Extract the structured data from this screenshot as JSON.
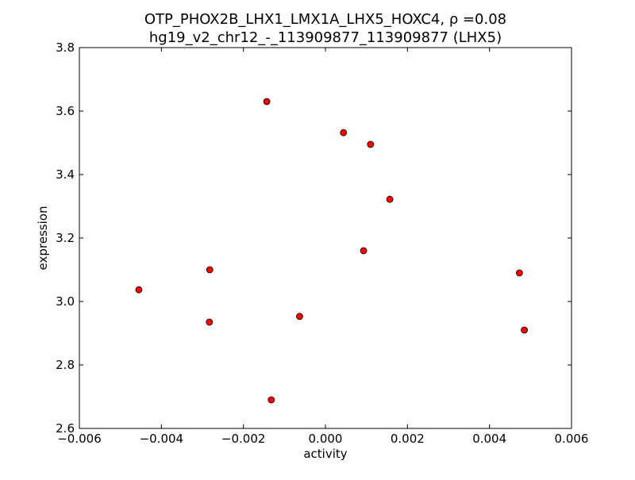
{
  "chart_data": {
    "type": "scatter",
    "title_line1": "OTP_PHOX2B_LHX1_LMX1A_LHX5_HOXC4, ρ =0.08",
    "title_line2": "hg19_v2_chr12_-_113909877_113909877 (LHX5)",
    "xlabel": "activity",
    "ylabel": "expression",
    "xlim": [
      -0.006,
      0.006
    ],
    "ylim": [
      2.6,
      3.8
    ],
    "xticks": [
      -0.006,
      -0.004,
      -0.002,
      0.0,
      0.002,
      0.004,
      0.006
    ],
    "xtick_labels": [
      "−0.006",
      "−0.004",
      "−0.002",
      "0.000",
      "0.002",
      "0.004",
      "0.006"
    ],
    "yticks": [
      2.6,
      2.8,
      3.0,
      3.2,
      3.4,
      3.6,
      3.8
    ],
    "ytick_labels": [
      "2.6",
      "2.8",
      "3.0",
      "3.2",
      "3.4",
      "3.6",
      "3.8"
    ],
    "grid": false,
    "marker_color": "#ff0000",
    "marker_edge": "#000000",
    "points": [
      {
        "x": -0.00455,
        "y": 3.037
      },
      {
        "x": -0.00282,
        "y": 3.1
      },
      {
        "x": -0.00283,
        "y": 2.935
      },
      {
        "x": -0.00143,
        "y": 3.63
      },
      {
        "x": -0.00132,
        "y": 2.69
      },
      {
        "x": -0.00063,
        "y": 2.953
      },
      {
        "x": 0.00044,
        "y": 3.532
      },
      {
        "x": 0.00093,
        "y": 3.16
      },
      {
        "x": 0.0011,
        "y": 3.495
      },
      {
        "x": 0.00157,
        "y": 3.322
      },
      {
        "x": 0.00473,
        "y": 3.09
      },
      {
        "x": 0.00485,
        "y": 2.91
      }
    ]
  }
}
